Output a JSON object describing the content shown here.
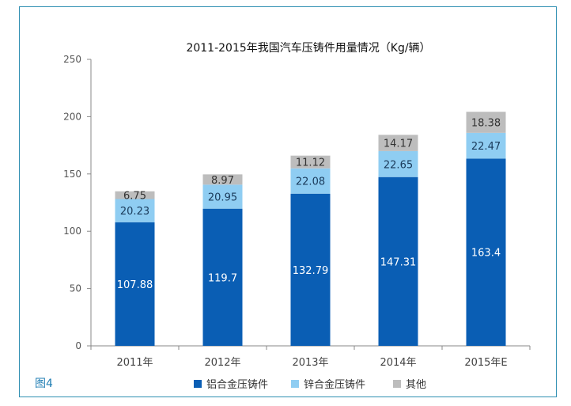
{
  "figure_label": "图4",
  "chart_data": {
    "type": "bar",
    "stacked": true,
    "title": "2011-2015年我国汽车压铸件用量情况（Kg/辆）",
    "categories": [
      "2011年",
      "2012年",
      "2013年",
      "2014年",
      "2015年E"
    ],
    "series": [
      {
        "name": "铝合金压铸件",
        "color": "#0a5eb4",
        "values": [
          107.88,
          119.7,
          132.79,
          147.31,
          163.4
        ]
      },
      {
        "name": "锌合金压铸件",
        "color": "#8fcdf2",
        "values": [
          20.23,
          20.95,
          22.08,
          22.65,
          22.47
        ]
      },
      {
        "name": "其他",
        "color": "#bdbdbd",
        "values": [
          6.75,
          8.97,
          11.12,
          14.17,
          18.38
        ]
      }
    ],
    "ylim": [
      0,
      250
    ],
    "yticks": [
      0,
      50,
      100,
      150,
      200,
      250
    ],
    "xlabel": "",
    "ylabel": "",
    "grid": false,
    "legend_position": "bottom"
  }
}
